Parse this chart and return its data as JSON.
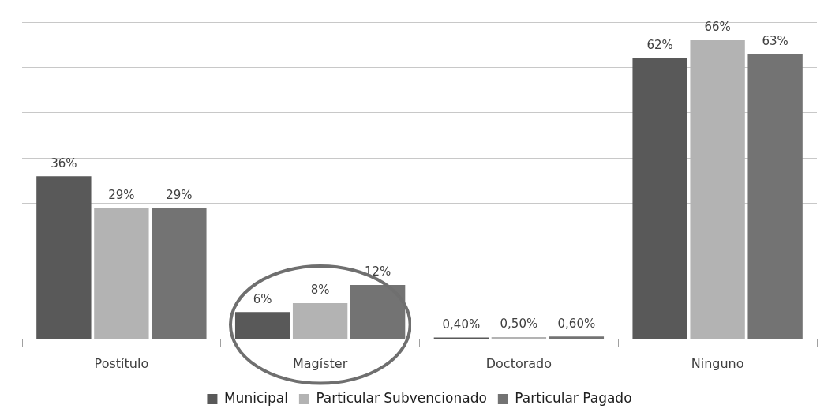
{
  "chart_data": {
    "type": "bar",
    "categories": [
      "Postítulo",
      "Magíster",
      "Doctorado",
      "Ninguno"
    ],
    "series": [
      {
        "name": "Municipal",
        "color": "#595959",
        "values": [
          36,
          6,
          0.4,
          62
        ],
        "value_labels": [
          "36%",
          "6%",
          "0,40%",
          "62%"
        ]
      },
      {
        "name": "Particular Subvencionado",
        "color": "#b3b3b3",
        "values": [
          29,
          8,
          0.5,
          66
        ],
        "value_labels": [
          "29%",
          "8%",
          "0,50%",
          "66%"
        ]
      },
      {
        "name": "Particular Pagado",
        "color": "#737373",
        "values": [
          29,
          12,
          0.6,
          63
        ],
        "value_labels": [
          "29%",
          "12%",
          "0,60%",
          "63%"
        ]
      }
    ],
    "ylim": [
      0,
      70
    ],
    "yticks": [
      {
        "value": 0,
        "label": null
      },
      {
        "value": 10,
        "label": null
      },
      {
        "value": 20,
        "label": null
      },
      {
        "value": 30,
        "label": null
      },
      {
        "value": 40,
        "label": null
      },
      {
        "value": 50,
        "label": null
      },
      {
        "value": 60,
        "label": null
      },
      {
        "value": 70,
        "label": null
      }
    ],
    "grid": "y",
    "legend": "bottom",
    "tick_labels": "x"
  }
}
